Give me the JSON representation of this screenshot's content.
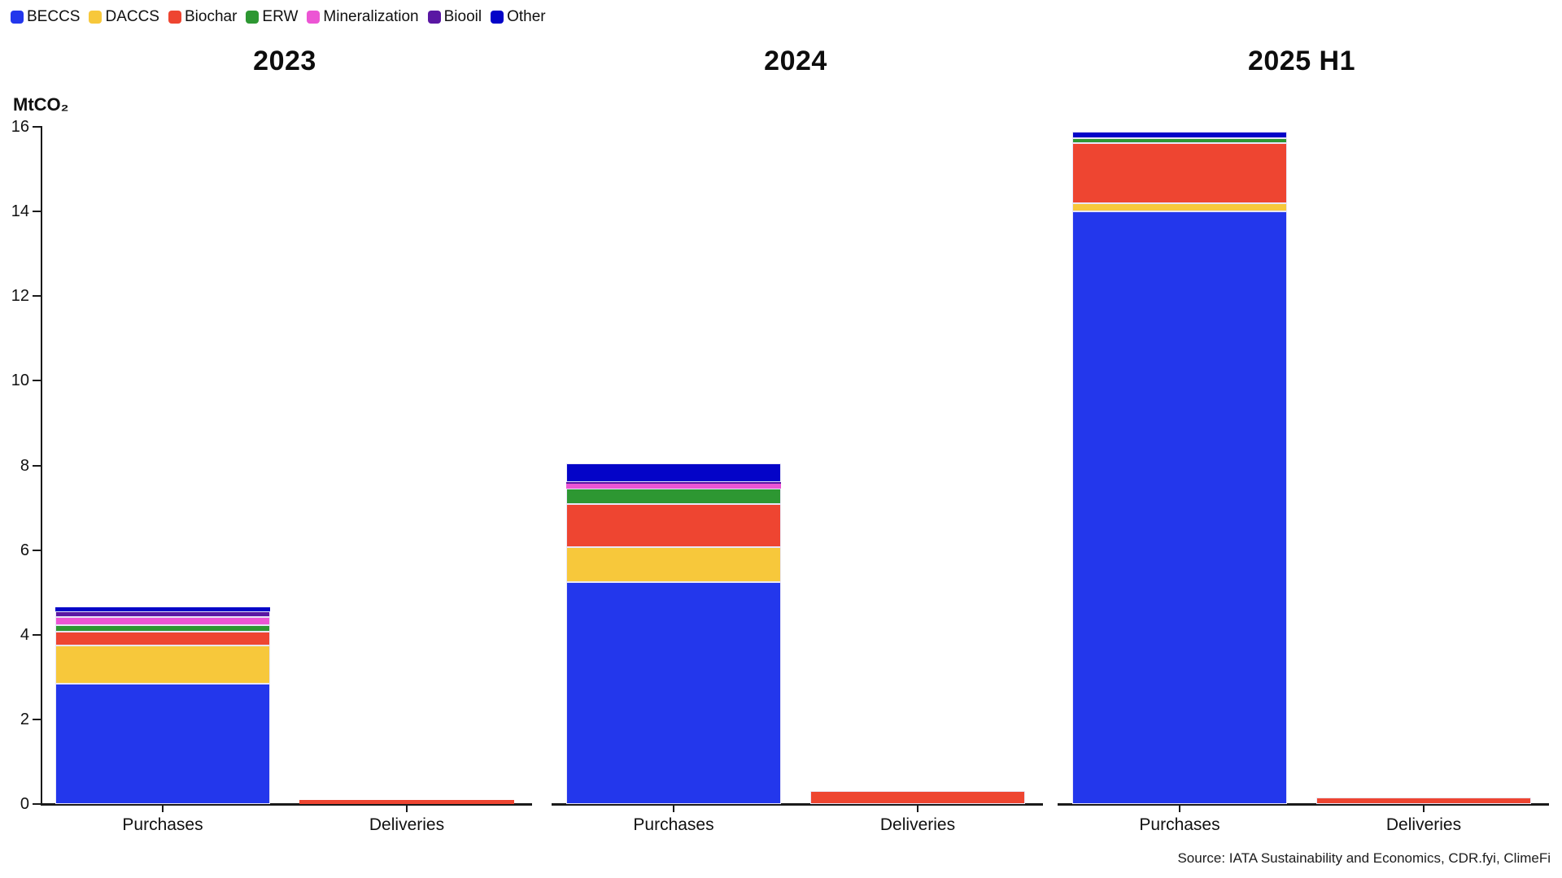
{
  "legend": {
    "items": [
      {
        "label": "BECCS",
        "color": "#2337ec"
      },
      {
        "label": "DACCS",
        "color": "#f7c83b"
      },
      {
        "label": "Biochar",
        "color": "#ee4531"
      },
      {
        "label": "ERW",
        "color": "#2d9732"
      },
      {
        "label": "Mineralization",
        "color": "#ec55d4"
      },
      {
        "label": "Biooil",
        "color": "#5a17a3"
      },
      {
        "label": "Other",
        "color": "#0404c8"
      }
    ]
  },
  "y_axis": {
    "unit_label": "MtCO₂",
    "ticks": [
      0,
      2,
      4,
      6,
      8,
      10,
      12,
      14,
      16
    ],
    "min": 0,
    "max": 16
  },
  "source": "Source: IATA Sustainability and Economics, CDR.fyi, ClimeFi",
  "chart_data": {
    "type": "bar",
    "stacked": true,
    "title": "",
    "ylabel": "MtCO₂",
    "ylim": [
      0,
      16
    ],
    "grid": false,
    "legend_position": "top-left",
    "series_order": [
      "BECCS",
      "DACCS",
      "Biochar",
      "ERW",
      "Mineralization",
      "Biooil",
      "Other"
    ],
    "colors": {
      "BECCS": "#2337ec",
      "DACCS": "#f7c83b",
      "Biochar": "#ee4531",
      "ERW": "#2d9732",
      "Mineralization": "#ec55d4",
      "Biooil": "#5a17a3",
      "Other": "#0404c8"
    },
    "panels": [
      {
        "title": "2023",
        "bars": [
          {
            "category": "Purchases",
            "segments": {
              "BECCS": 2.85,
              "DACCS": 0.9,
              "Biochar": 0.33,
              "ERW": 0.15,
              "Mineralization": 0.19,
              "Biooil": 0.13,
              "Other": 0.1
            },
            "total": 4.65
          },
          {
            "category": "Deliveries",
            "segments": {
              "BECCS": 0,
              "DACCS": 0,
              "Biochar": 0.1,
              "ERW": 0,
              "Mineralization": 0,
              "Biooil": 0,
              "Other": 0
            },
            "total": 0.1
          }
        ]
      },
      {
        "title": "2024",
        "bars": [
          {
            "category": "Purchases",
            "segments": {
              "BECCS": 5.25,
              "DACCS": 0.82,
              "Biochar": 1.02,
              "ERW": 0.37,
              "Mineralization": 0.11,
              "Biooil": 0.03,
              "Other": 0.45
            },
            "total": 8.05
          },
          {
            "category": "Deliveries",
            "segments": {
              "BECCS": 0,
              "DACCS": 0,
              "Biochar": 0.3,
              "ERW": 0,
              "Mineralization": 0,
              "Biooil": 0,
              "Other": 0
            },
            "total": 0.3
          }
        ]
      },
      {
        "title": "2025 H1",
        "bars": [
          {
            "category": "Purchases",
            "segments": {
              "BECCS": 14.0,
              "DACCS": 0.19,
              "Biochar": 1.42,
              "ERW": 0.13,
              "Mineralization": 0,
              "Biooil": 0,
              "Other": 0.15
            },
            "total": 15.89
          },
          {
            "category": "Deliveries",
            "segments": {
              "BECCS": 0,
              "DACCS": 0,
              "Biochar": 0.15,
              "ERW": 0,
              "Mineralization": 0,
              "Biooil": 0,
              "Other": 0
            },
            "total": 0.15
          }
        ]
      }
    ]
  }
}
